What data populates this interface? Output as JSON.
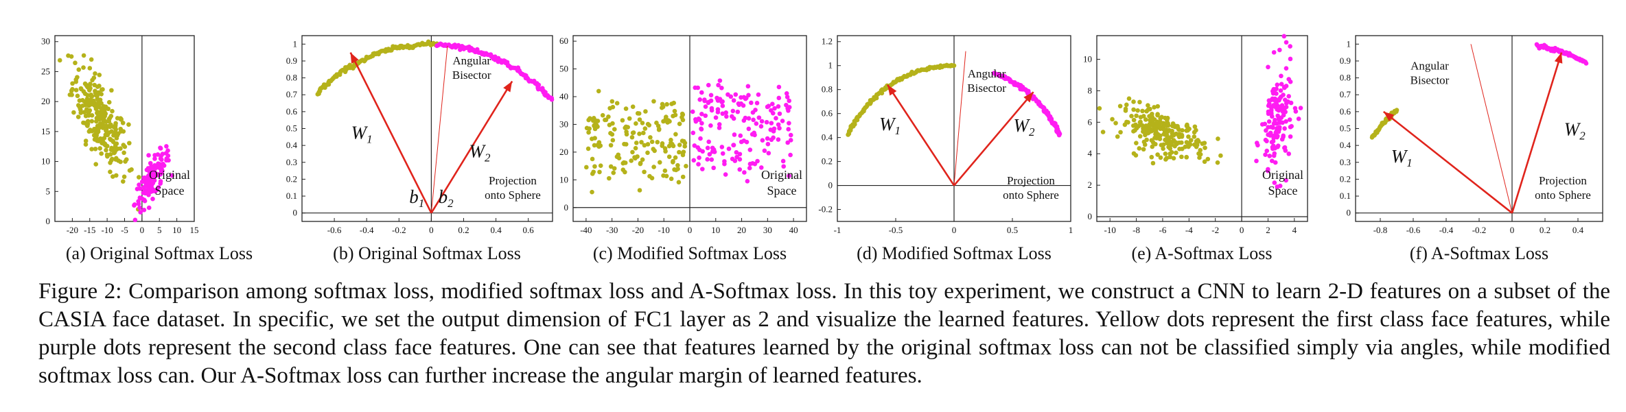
{
  "colors": {
    "class1": "#b5b21a",
    "class2": "#ff1cf2",
    "vector": "#e0241c",
    "axis": "#222222"
  },
  "caption": {
    "label": "Figure 2:",
    "text": "Comparison among softmax loss, modified softmax loss and A-Softmax loss. In this toy experiment, we construct a CNN to learn 2-D features on a subset of the CASIA face dataset. In specific, we set the output dimension of FC1 layer as 2 and visualize the learned features. Yellow dots represent the first class face features, while purple dots represent the second class face features. One can see that features learned by the original softmax loss can not be classified simply via angles, while modified softmax loss can. Our A-Softmax loss can further increase the angular margin of learned features."
  },
  "chart_data": [
    {
      "id": "a",
      "type": "scatter",
      "title": "(a) Original Softmax Loss",
      "xlim": [
        -25,
        15
      ],
      "ylim": [
        0,
        31
      ],
      "xticks": [
        -20,
        -15,
        -10,
        -5,
        0,
        5,
        10,
        15
      ],
      "yticks": [
        0,
        5,
        10,
        15,
        20,
        25,
        30
      ],
      "annotations": [
        "Original",
        "Space"
      ],
      "series": [
        {
          "name": "class 1",
          "center": [
            -12,
            17
          ],
          "spread": [
            4,
            4.5
          ],
          "tilt": -0.7,
          "count": 260
        },
        {
          "name": "class 2",
          "center": [
            3,
            7
          ],
          "spread": [
            2.5,
            2.5
          ],
          "tilt": 0.8,
          "count": 140
        }
      ]
    },
    {
      "id": "b",
      "type": "scatter",
      "title": "(b) Original Softmax Loss",
      "xlim": [
        -0.8,
        0.75
      ],
      "ylim": [
        -0.05,
        1.05
      ],
      "xticks": [
        -0.6,
        -0.4,
        -0.2,
        0,
        0.2,
        0.4,
        0.6
      ],
      "yticks": [
        0,
        0.1,
        0.2,
        0.3,
        0.4,
        0.5,
        0.6,
        0.7,
        0.8,
        0.9,
        1
      ],
      "annotations": [
        "Angular",
        "Bisector",
        "Projection",
        "onto Sphere"
      ],
      "vector_labels": [
        "W1",
        "W2",
        "b1",
        "b2"
      ],
      "vectors": [
        {
          "name": "W1",
          "end": [
            -0.5,
            0.95
          ]
        },
        {
          "name": "W2",
          "end": [
            0.5,
            0.78
          ]
        }
      ],
      "bisector": [
        0.1,
        0.99
      ],
      "arc_class1": {
        "angle_from": 135,
        "angle_to": 88
      },
      "arc_class2": {
        "angle_from": 88,
        "angle_to": 42
      }
    },
    {
      "id": "c",
      "type": "scatter",
      "title": "(c) Modified Softmax Loss",
      "xlim": [
        -45,
        45
      ],
      "ylim": [
        -5,
        62
      ],
      "xticks": [
        -40,
        -30,
        -20,
        -10,
        0,
        10,
        20,
        30,
        40
      ],
      "yticks": [
        0,
        10,
        20,
        30,
        40,
        50,
        60
      ],
      "annotations": [
        "Original",
        "Space"
      ],
      "series": [
        {
          "name": "class 1",
          "xrange": [
            -40,
            -1
          ],
          "yrange": [
            5,
            42
          ],
          "count": 170
        },
        {
          "name": "class 2",
          "xrange": [
            1,
            40
          ],
          "yrange": [
            8,
            48
          ],
          "count": 170
        }
      ]
    },
    {
      "id": "d",
      "type": "scatter",
      "title": "(d) Modified Softmax Loss",
      "xlim": [
        -1,
        1
      ],
      "ylim": [
        -0.3,
        1.25
      ],
      "xticks": [
        -1,
        -0.5,
        0,
        0.5,
        1
      ],
      "yticks": [
        -0.2,
        0,
        0.2,
        0.4,
        0.6,
        0.8,
        1,
        1.2
      ],
      "annotations": [
        "Angular",
        "Bisector",
        "Projection",
        "onto Sphere"
      ],
      "vector_labels": [
        "W1",
        "W2"
      ],
      "vectors": [
        {
          "name": "W1",
          "end": [
            -0.57,
            0.84
          ]
        },
        {
          "name": "W2",
          "end": [
            0.68,
            0.78
          ]
        }
      ],
      "bisector": [
        0.1,
        1.12
      ],
      "arc_class1": {
        "angle_from": 155,
        "angle_to": 90
      },
      "arc_class2": {
        "angle_from": 70,
        "angle_to": 25
      }
    },
    {
      "id": "e",
      "type": "scatter",
      "title": "(e) A-Softmax Loss",
      "xlim": [
        -11,
        5
      ],
      "ylim": [
        -0.3,
        11.5
      ],
      "xticks": [
        -10,
        -8,
        -6,
        -4,
        -2,
        0,
        2,
        4
      ],
      "yticks": [
        0,
        2,
        4,
        6,
        8,
        10
      ],
      "annotations": [
        "Original",
        "Space"
      ],
      "series": [
        {
          "name": "class 1",
          "center": [
            -6,
            5.3
          ],
          "spread": [
            1.6,
            0.8
          ],
          "tilt": -0.55,
          "count": 240
        },
        {
          "name": "class 2",
          "center": [
            2.7,
            6.0
          ],
          "spread": [
            0.6,
            1.8
          ],
          "tilt": 0.3,
          "count": 150
        }
      ]
    },
    {
      "id": "f",
      "type": "scatter",
      "title": "(f) A-Softmax Loss",
      "xlim": [
        -0.95,
        0.55
      ],
      "ylim": [
        -0.05,
        1.05
      ],
      "xticks": [
        -0.8,
        -0.6,
        -0.4,
        -0.2,
        0,
        0.2,
        0.4
      ],
      "yticks": [
        0,
        0.1,
        0.2,
        0.3,
        0.4,
        0.5,
        0.6,
        0.7,
        0.8,
        0.9,
        1
      ],
      "annotations": [
        "Angular",
        "Bisector",
        "Projection",
        "onto Sphere"
      ],
      "vector_labels": [
        "W1",
        "W2"
      ],
      "vectors": [
        {
          "name": "W1",
          "end": [
            -0.78,
            0.6
          ]
        },
        {
          "name": "W2",
          "end": [
            0.3,
            0.95
          ]
        }
      ],
      "bisector": [
        -0.25,
        1.0
      ],
      "arc_class1": {
        "x_from": -0.85,
        "x_to": -0.7
      },
      "arc_class2": {
        "x_from": 0.15,
        "x_to": 0.45
      }
    }
  ]
}
